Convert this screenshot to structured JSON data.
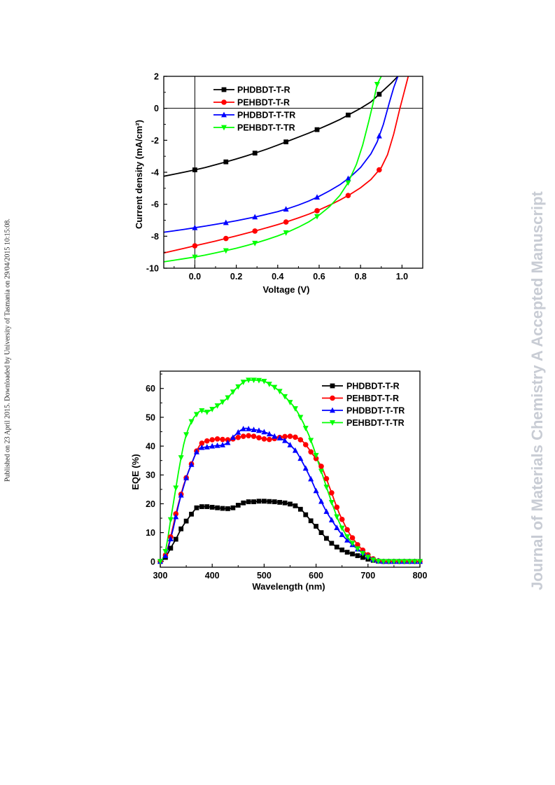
{
  "side_note": "Published on 23 April 2015. Downloaded by University of Tasmania on 29/04/2015 10:15:08.",
  "watermark": "Journal of Materials Chemistry A Accepted Manuscript",
  "series_colors": [
    "#000000",
    "#ff0000",
    "#0000ff",
    "#00ff00"
  ],
  "series_markers": [
    "square",
    "circle",
    "triangle-up",
    "triangle-down"
  ],
  "chart_data": [
    {
      "type": "line",
      "xlabel": "Voltage (V)",
      "ylabel": "Current density (mA/cm²)",
      "xlim": [
        -0.15,
        1.1
      ],
      "ylim": [
        -10,
        2
      ],
      "xticks": [
        "0.0",
        "0.2",
        "0.4",
        "0.6",
        "0.8",
        "1.0"
      ],
      "yticks": [
        "-10",
        "-8",
        "-6",
        "-4",
        "-2",
        "0",
        "2"
      ],
      "legend_position": "top-left",
      "series": [
        {
          "name": "PHDBDT-T-R",
          "x": [
            -0.15,
            -0.1,
            -0.05,
            0.0,
            0.05,
            0.1,
            0.15,
            0.2,
            0.25,
            0.3,
            0.35,
            0.4,
            0.45,
            0.5,
            0.55,
            0.6,
            0.65,
            0.7,
            0.75,
            0.8,
            0.85,
            0.9,
            0.95,
            0.98
          ],
          "y": [
            -4.25,
            -4.12,
            -3.99,
            -3.85,
            -3.7,
            -3.53,
            -3.35,
            -3.17,
            -2.97,
            -2.76,
            -2.54,
            -2.3,
            -2.05,
            -1.8,
            -1.55,
            -1.28,
            -1.0,
            -0.7,
            -0.35,
            0.0,
            0.4,
            1.0,
            1.6,
            2.0
          ],
          "marker_x": [
            0.0,
            0.15,
            0.29,
            0.44,
            0.59,
            0.74,
            0.89
          ]
        },
        {
          "name": "PEHBDT-T-R",
          "x": [
            -0.15,
            -0.1,
            -0.05,
            0.0,
            0.05,
            0.1,
            0.15,
            0.2,
            0.25,
            0.3,
            0.35,
            0.4,
            0.45,
            0.5,
            0.55,
            0.6,
            0.65,
            0.7,
            0.75,
            0.8,
            0.85,
            0.9,
            0.93,
            0.96,
            0.99,
            1.01,
            1.03
          ],
          "y": [
            -9.05,
            -8.9,
            -8.75,
            -8.6,
            -8.45,
            -8.3,
            -8.14,
            -7.98,
            -7.81,
            -7.64,
            -7.46,
            -7.27,
            -7.07,
            -6.85,
            -6.62,
            -6.35,
            -6.06,
            -5.74,
            -5.38,
            -4.97,
            -4.45,
            -3.7,
            -2.9,
            -1.6,
            0.0,
            1.0,
            2.0
          ],
          "marker_x": [
            0.0,
            0.15,
            0.29,
            0.44,
            0.59,
            0.74,
            0.89
          ]
        },
        {
          "name": "PHDBDT-T-TR",
          "x": [
            -0.15,
            -0.1,
            -0.05,
            0.0,
            0.05,
            0.1,
            0.15,
            0.2,
            0.25,
            0.3,
            0.35,
            0.4,
            0.45,
            0.5,
            0.55,
            0.6,
            0.65,
            0.7,
            0.75,
            0.8,
            0.85,
            0.88,
            0.91,
            0.94,
            0.96,
            0.98
          ],
          "y": [
            -7.75,
            -7.66,
            -7.57,
            -7.47,
            -7.37,
            -7.26,
            -7.15,
            -7.03,
            -6.9,
            -6.77,
            -6.62,
            -6.46,
            -6.27,
            -6.05,
            -5.8,
            -5.5,
            -5.16,
            -4.78,
            -4.3,
            -3.7,
            -2.85,
            -2.1,
            -1.0,
            0.4,
            1.3,
            2.0
          ],
          "marker_x": [
            0.0,
            0.15,
            0.29,
            0.44,
            0.59,
            0.74,
            0.89
          ]
        },
        {
          "name": "PEHBDT-T-TR",
          "x": [
            -0.15,
            -0.1,
            -0.05,
            0.0,
            0.05,
            0.1,
            0.15,
            0.2,
            0.25,
            0.3,
            0.35,
            0.4,
            0.45,
            0.5,
            0.55,
            0.6,
            0.65,
            0.7,
            0.74,
            0.78,
            0.81,
            0.84,
            0.86,
            0.88,
            0.9
          ],
          "y": [
            -9.6,
            -9.5,
            -9.4,
            -9.3,
            -9.18,
            -9.04,
            -8.9,
            -8.75,
            -8.58,
            -8.4,
            -8.2,
            -7.98,
            -7.73,
            -7.44,
            -7.1,
            -6.68,
            -6.15,
            -5.45,
            -4.65,
            -3.5,
            -2.3,
            -0.8,
            0.3,
            1.5,
            2.0
          ],
          "marker_x": [
            0.0,
            0.15,
            0.29,
            0.44,
            0.59,
            0.74,
            0.88
          ]
        }
      ]
    },
    {
      "type": "line",
      "xlabel": "Wavelength (nm)",
      "ylabel": "EQE (%)",
      "xlim": [
        300,
        800
      ],
      "ylim": [
        -2,
        66
      ],
      "xticks": [
        "300",
        "400",
        "500",
        "600",
        "700",
        "800"
      ],
      "yticks": [
        "0",
        "10",
        "20",
        "30",
        "40",
        "50",
        "60"
      ],
      "legend_position": "top-right",
      "x": [
        300,
        305,
        310,
        315,
        320,
        325,
        330,
        335,
        340,
        345,
        350,
        355,
        360,
        365,
        370,
        375,
        380,
        385,
        390,
        395,
        400,
        405,
        410,
        415,
        420,
        425,
        430,
        435,
        440,
        445,
        450,
        455,
        460,
        465,
        470,
        475,
        480,
        485,
        490,
        495,
        500,
        505,
        510,
        515,
        520,
        525,
        530,
        535,
        540,
        545,
        550,
        555,
        560,
        565,
        570,
        575,
        580,
        585,
        590,
        595,
        600,
        605,
        610,
        615,
        620,
        625,
        630,
        635,
        640,
        645,
        650,
        655,
        660,
        665,
        670,
        675,
        680,
        685,
        690,
        695,
        700,
        705,
        710,
        715,
        720,
        725,
        730,
        735,
        740,
        745,
        750,
        755,
        760,
        765,
        770,
        775,
        780,
        785,
        790,
        795,
        800
      ],
      "series": [
        {
          "name": "PHDBDT-T-R",
          "values": [
            0.0,
            0.6,
            1.4,
            2.9,
            4.6,
            6.2,
            7.7,
            9.5,
            11.3,
            12.7,
            14.0,
            15.2,
            16.4,
            17.6,
            18.6,
            19.0,
            19.0,
            19.0,
            19.0,
            18.9,
            18.8,
            18.7,
            18.6,
            18.5,
            18.4,
            18.3,
            18.3,
            18.4,
            18.6,
            19.0,
            19.5,
            19.9,
            20.3,
            20.6,
            20.7,
            20.7,
            20.7,
            20.8,
            20.9,
            20.9,
            20.9,
            20.9,
            20.8,
            20.8,
            20.7,
            20.6,
            20.5,
            20.4,
            20.3,
            20.1,
            19.9,
            19.7,
            19.3,
            18.8,
            18.1,
            17.3,
            16.2,
            15.2,
            14.1,
            13.0,
            12.2,
            11.0,
            10.0,
            9.0,
            8.0,
            7.1,
            6.3,
            5.6,
            5.0,
            4.4,
            4.0,
            3.6,
            3.2,
            2.9,
            2.6,
            2.3,
            2.0,
            1.7,
            1.4,
            1.1,
            0.8,
            0.6,
            0.4,
            0.2,
            0.1,
            0.0,
            0.0,
            0.0,
            0.0,
            0.0,
            0.0,
            0.0,
            0.0,
            0.0,
            0.0,
            0.0,
            0.0,
            0.0,
            0.0,
            0.0,
            0.0
          ]
        },
        {
          "name": "PEHBDT-T-R",
          "values": [
            0.0,
            0.5,
            2.2,
            5.0,
            8.5,
            12.5,
            16.5,
            20.0,
            23.3,
            26.5,
            29.0,
            31.5,
            33.8,
            36.0,
            38.3,
            40.0,
            41.0,
            41.5,
            41.8,
            42.0,
            42.2,
            42.4,
            42.5,
            42.4,
            42.3,
            42.2,
            42.2,
            42.3,
            42.5,
            42.8,
            43.0,
            43.2,
            43.4,
            43.5,
            43.6,
            43.6,
            43.4,
            43.1,
            42.9,
            42.7,
            42.5,
            42.4,
            42.3,
            42.4,
            42.6,
            42.8,
            43.0,
            43.2,
            43.3,
            43.4,
            43.4,
            43.3,
            43.1,
            42.7,
            42.2,
            41.5,
            40.5,
            39.3,
            38.0,
            36.8,
            35.7,
            34.5,
            33.0,
            31.0,
            28.7,
            26.2,
            23.8,
            21.2,
            18.8,
            16.5,
            14.6,
            12.8,
            11.0,
            9.5,
            8.2,
            7.0,
            5.8,
            4.8,
            3.9,
            3.0,
            2.3,
            1.5,
            0.9,
            0.5,
            0.2,
            0.1,
            0.0,
            0.0,
            0.0,
            0.0,
            0.0,
            0.0,
            0.0,
            0.0,
            0.0,
            0.0,
            0.0,
            0.0,
            0.0,
            0.0,
            0.0
          ]
        },
        {
          "name": "PHDBDT-T-TR",
          "values": [
            0.0,
            0.5,
            2.0,
            4.5,
            7.8,
            11.5,
            15.5,
            19.5,
            23.0,
            26.0,
            29.0,
            31.5,
            33.6,
            36.0,
            38.0,
            39.2,
            39.5,
            39.6,
            39.7,
            39.8,
            40.0,
            40.1,
            40.2,
            40.2,
            40.4,
            40.7,
            41.2,
            42.0,
            43.0,
            44.0,
            44.8,
            45.5,
            46.0,
            46.2,
            46.0,
            45.8,
            45.7,
            45.6,
            45.4,
            45.2,
            44.9,
            44.6,
            44.2,
            43.8,
            43.4,
            43.1,
            42.8,
            42.4,
            41.9,
            41.2,
            40.4,
            39.5,
            38.5,
            37.3,
            35.7,
            34.0,
            32.3,
            30.5,
            28.6,
            26.6,
            24.5,
            22.6,
            20.8,
            19.0,
            17.3,
            15.8,
            14.4,
            13.0,
            11.7,
            10.4,
            9.3,
            8.3,
            7.4,
            6.6,
            5.8,
            5.0,
            4.3,
            3.6,
            3.0,
            2.4,
            1.8,
            1.2,
            0.7,
            0.4,
            0.2,
            0.1,
            0.0,
            0.0,
            0.0,
            0.0,
            0.0,
            0.0,
            0.0,
            0.0,
            0.0,
            0.0,
            0.0,
            0.0,
            0.0,
            0.0,
            0.0
          ]
        },
        {
          "name": "PEHBDT-T-TR",
          "values": [
            0.0,
            1.0,
            3.5,
            8.5,
            14.5,
            20.0,
            25.5,
            31.0,
            36.0,
            40.5,
            44.0,
            46.5,
            48.5,
            50.0,
            51.0,
            52.0,
            52.3,
            52.0,
            51.8,
            52.2,
            52.8,
            53.4,
            54.0,
            54.6,
            55.3,
            56.0,
            56.8,
            57.8,
            58.8,
            59.8,
            60.6,
            61.4,
            62.2,
            62.7,
            62.9,
            62.9,
            62.9,
            62.9,
            62.8,
            62.7,
            62.5,
            62.1,
            61.5,
            61.0,
            60.4,
            59.7,
            59.0,
            58.1,
            57.2,
            56.2,
            55.2,
            54.2,
            53.0,
            51.6,
            50.0,
            48.2,
            46.2,
            44.3,
            42.0,
            39.5,
            36.8,
            34.0,
            31.3,
            28.6,
            25.8,
            23.2,
            20.5,
            18.0,
            15.5,
            13.4,
            11.6,
            10.0,
            8.6,
            7.4,
            6.3,
            5.3,
            4.4,
            3.5,
            2.8,
            2.1,
            1.5,
            1.0,
            0.5,
            0.2,
            0.1,
            0.0,
            0.0,
            0.0,
            0.0,
            0.0,
            0.0,
            0.0,
            0.0,
            0.0,
            0.0,
            0.0,
            0.0,
            0.0,
            0.0,
            0.0,
            0.0
          ]
        }
      ]
    }
  ]
}
